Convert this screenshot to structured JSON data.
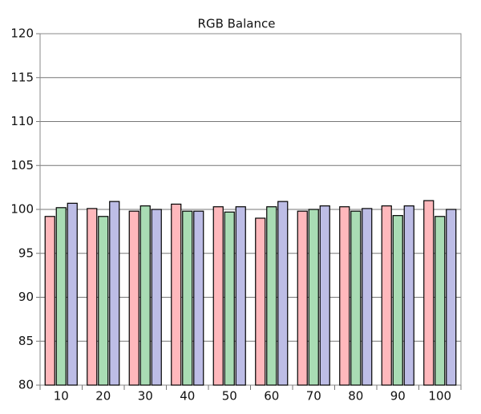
{
  "chart_data": {
    "type": "bar",
    "title": "RGB Balance",
    "categories": [
      "10",
      "20",
      "30",
      "40",
      "50",
      "60",
      "70",
      "80",
      "90",
      "100"
    ],
    "series": [
      {
        "color": "#ffb8bc",
        "values": [
          99.2,
          100.1,
          99.8,
          100.6,
          100.3,
          99.0,
          99.8,
          100.3,
          100.4,
          101.0
        ]
      },
      {
        "color": "#a9dcb4",
        "values": [
          100.2,
          99.2,
          100.4,
          99.8,
          99.7,
          100.3,
          100.0,
          99.8,
          99.3,
          99.2
        ]
      },
      {
        "color": "#bdbde6",
        "values": [
          100.7,
          100.9,
          100.0,
          99.8,
          100.3,
          100.9,
          100.4,
          100.1,
          100.4,
          100.0
        ]
      }
    ],
    "ylim": [
      80,
      120
    ],
    "yticks": [
      80,
      85,
      90,
      95,
      100,
      105,
      110,
      115,
      120
    ],
    "grid": true
  }
}
